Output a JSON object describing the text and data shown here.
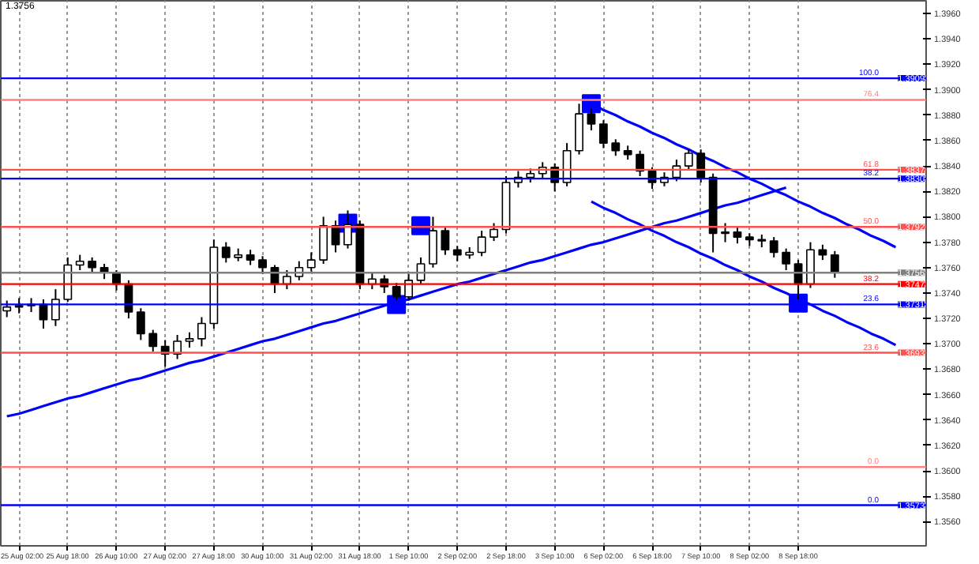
{
  "chart_data": {
    "type": "candlestick",
    "color": "#000000",
    "categories": [
      null,
      "25 Aug 02:00",
      null,
      null,
      null,
      "25 Aug 18:00",
      null,
      null,
      null,
      "26 Aug 10:00",
      null,
      null,
      null,
      "27 Aug 02:00",
      null,
      null,
      null,
      "27 Aug 18:00",
      null,
      null,
      null,
      "30 Aug 10:00",
      null,
      null,
      null,
      "31 Aug 02:00",
      null,
      null,
      null,
      "31 Aug 18:00",
      null,
      null,
      null,
      "1 Sep 10:00",
      null,
      null,
      null,
      "2 Sep 02:00",
      null,
      null,
      null,
      "2 Sep 18:00",
      null,
      null,
      null,
      "3 Sep 10:00",
      null,
      null,
      null,
      "6 Sep 02:00",
      null,
      null,
      null,
      "6 Sep 18:00",
      null,
      null,
      null,
      "7 Sep 10:00",
      null,
      null,
      null,
      "8 Sep 02:00",
      null,
      null,
      null,
      "8 Sep 18:00",
      null,
      null,
      null,
      null,
      null,
      null,
      null,
      null,
      null,
      null
    ],
    "ohlc": [
      [
        1.3726,
        1.3734,
        1.3721,
        1.3729
      ],
      [
        1.3729,
        1.3736,
        1.3724,
        1.373
      ],
      [
        1.373,
        1.3736,
        1.3725,
        1.3731
      ],
      [
        1.3731,
        1.3735,
        1.3712,
        1.3719
      ],
      [
        1.3719,
        1.3743,
        1.3714,
        1.3735
      ],
      [
        1.3735,
        1.3768,
        1.3733,
        1.3762
      ],
      [
        1.3762,
        1.377,
        1.3758,
        1.3765
      ],
      [
        1.3765,
        1.3768,
        1.3756,
        1.376
      ],
      [
        1.376,
        1.3763,
        1.3751,
        1.3756
      ],
      [
        1.3756,
        1.3758,
        1.3742,
        1.3747
      ],
      [
        1.3747,
        1.375,
        1.372,
        1.3725
      ],
      [
        1.3725,
        1.3728,
        1.3703,
        1.3708
      ],
      [
        1.3708,
        1.3711,
        1.3694,
        1.3698
      ],
      [
        1.3698,
        1.3703,
        1.3682,
        1.3692
      ],
      [
        1.3692,
        1.3707,
        1.3688,
        1.3702
      ],
      [
        1.3702,
        1.3709,
        1.3697,
        1.3704
      ],
      [
        1.3704,
        1.3721,
        1.3698,
        1.3716
      ],
      [
        1.3716,
        1.3782,
        1.3712,
        1.3776
      ],
      [
        1.3776,
        1.378,
        1.3764,
        1.3768
      ],
      [
        1.3768,
        1.3775,
        1.3765,
        1.377
      ],
      [
        1.377,
        1.3774,
        1.3762,
        1.3766
      ],
      [
        1.3766,
        1.3769,
        1.3755,
        1.376
      ],
      [
        1.376,
        1.3762,
        1.374,
        1.3747
      ],
      [
        1.3747,
        1.3758,
        1.3743,
        1.3753
      ],
      [
        1.3753,
        1.3765,
        1.375,
        1.376
      ],
      [
        1.376,
        1.3772,
        1.3757,
        1.3766
      ],
      [
        1.3766,
        1.38,
        1.3763,
        1.3793
      ],
      [
        1.3793,
        1.3797,
        1.3772,
        1.3778
      ],
      [
        1.3778,
        1.3805,
        1.3775,
        1.3794
      ],
      [
        1.3794,
        1.3797,
        1.3743,
        1.3747
      ],
      [
        1.3747,
        1.3756,
        1.3743,
        1.3751
      ],
      [
        1.3751,
        1.3754,
        1.374,
        1.3745
      ],
      [
        1.3745,
        1.3748,
        1.3734,
        1.3737
      ],
      [
        1.3737,
        1.3755,
        1.3734,
        1.375
      ],
      [
        1.375,
        1.3768,
        1.3747,
        1.3763
      ],
      [
        1.3763,
        1.38,
        1.376,
        1.3789
      ],
      [
        1.3789,
        1.3792,
        1.377,
        1.3774
      ],
      [
        1.3774,
        1.3777,
        1.3765,
        1.377
      ],
      [
        1.377,
        1.3776,
        1.3767,
        1.3772
      ],
      [
        1.3772,
        1.3789,
        1.3769,
        1.3784
      ],
      [
        1.3784,
        1.3795,
        1.3781,
        1.379
      ],
      [
        1.379,
        1.3832,
        1.3787,
        1.3827
      ],
      [
        1.3827,
        1.3836,
        1.3823,
        1.3831
      ],
      [
        1.3831,
        1.3838,
        1.3827,
        1.3834
      ],
      [
        1.3834,
        1.3843,
        1.383,
        1.3839
      ],
      [
        1.3839,
        1.3842,
        1.382,
        1.3827
      ],
      [
        1.3827,
        1.3858,
        1.3824,
        1.3852
      ],
      [
        1.3852,
        1.3889,
        1.3849,
        1.3881
      ],
      [
        1.3881,
        1.3885,
        1.3868,
        1.3873
      ],
      [
        1.3873,
        1.3876,
        1.3854,
        1.3858
      ],
      [
        1.3858,
        1.3861,
        1.3848,
        1.3852
      ],
      [
        1.3852,
        1.3856,
        1.3845,
        1.3849
      ],
      [
        1.3849,
        1.3852,
        1.3832,
        1.3836
      ],
      [
        1.3836,
        1.3839,
        1.3822,
        1.3827
      ],
      [
        1.3827,
        1.3835,
        1.3824,
        1.3831
      ],
      [
        1.3831,
        1.3845,
        1.3828,
        1.384
      ],
      [
        1.384,
        1.3853,
        1.3837,
        1.385
      ],
      [
        1.385,
        1.3853,
        1.3827,
        1.3831
      ],
      [
        1.3831,
        1.3834,
        1.3772,
        1.3787
      ],
      [
        1.3787,
        1.3795,
        1.378,
        1.3788
      ],
      [
        1.3788,
        1.3792,
        1.3779,
        1.3784
      ],
      [
        1.3784,
        1.3787,
        1.3777,
        1.3782
      ],
      [
        1.3782,
        1.3786,
        1.3776,
        1.3781
      ],
      [
        1.3781,
        1.3784,
        1.3768,
        1.3772
      ],
      [
        1.3772,
        1.3775,
        1.3758,
        1.3763
      ],
      [
        1.3763,
        1.3766,
        1.3735,
        1.3747
      ],
      [
        1.3747,
        1.378,
        1.3744,
        1.3774
      ],
      [
        1.3774,
        1.3778,
        1.3766,
        1.377
      ],
      [
        1.377,
        1.3773,
        1.3752,
        1.3756
      ],
      null,
      null,
      null,
      null,
      null,
      null,
      null
    ],
    "series": [
      {
        "type": "line",
        "color": "#0000ff",
        "values": [
          1.3643,
          1.3645,
          1.3648,
          1.3651,
          1.3654,
          1.3657,
          1.3659,
          1.3662,
          1.3665,
          1.3668,
          1.3671,
          1.3673,
          1.3676,
          1.3679,
          1.3682,
          1.3685,
          1.3687,
          1.369,
          1.3693,
          1.3696,
          1.3699,
          1.3702,
          1.3704,
          1.3707,
          1.371,
          1.3713,
          1.3716,
          1.3718,
          1.3721,
          1.3724,
          1.3727,
          1.373,
          1.3733,
          1.3735,
          1.3738,
          1.3741,
          1.3744,
          1.3747,
          1.3749,
          1.3752,
          1.3755,
          1.3758,
          1.3761,
          1.3764,
          1.3766,
          1.3769,
          1.3772,
          1.3775,
          1.3778,
          1.378,
          1.3783,
          1.3786,
          1.3789,
          1.3792,
          1.3795,
          1.3797,
          1.38,
          1.3803,
          1.3806,
          1.3809,
          1.3811,
          1.3814,
          1.3817,
          1.382,
          1.3823,
          null,
          null,
          null,
          null,
          null,
          null,
          null,
          null,
          null,
          null,
          null
        ]
      },
      {
        "type": "line",
        "color": "#0000ff",
        "values": [
          null,
          null,
          null,
          null,
          null,
          null,
          null,
          null,
          null,
          null,
          null,
          null,
          null,
          null,
          null,
          null,
          null,
          null,
          null,
          null,
          null,
          null,
          null,
          null,
          null,
          null,
          null,
          null,
          null,
          null,
          null,
          null,
          null,
          null,
          null,
          null,
          null,
          null,
          null,
          null,
          null,
          null,
          null,
          null,
          null,
          null,
          null,
          null,
          1.3889,
          1.3884,
          1.388,
          1.3875,
          1.3871,
          1.3866,
          1.3862,
          1.3857,
          1.3853,
          1.3848,
          1.3844,
          1.3839,
          1.3835,
          1.383,
          1.3826,
          1.3821,
          1.3817,
          1.3812,
          1.3808,
          1.3803,
          1.3799,
          1.3794,
          1.379,
          1.3785,
          1.3781,
          1.3776,
          null,
          null
        ]
      },
      {
        "type": "line",
        "color": "#0000ff",
        "values": [
          null,
          null,
          null,
          null,
          null,
          null,
          null,
          null,
          null,
          null,
          null,
          null,
          null,
          null,
          null,
          null,
          null,
          null,
          null,
          null,
          null,
          null,
          null,
          null,
          null,
          null,
          null,
          null,
          null,
          null,
          null,
          null,
          null,
          null,
          null,
          null,
          null,
          null,
          null,
          null,
          null,
          null,
          null,
          null,
          null,
          null,
          null,
          null,
          1.3812,
          1.3807,
          1.3803,
          1.3798,
          1.3794,
          1.3789,
          1.3785,
          1.378,
          1.3776,
          1.3771,
          1.3767,
          1.3762,
          1.3758,
          1.3753,
          1.3749,
          1.3744,
          1.374,
          1.3735,
          1.3731,
          1.3726,
          1.3722,
          1.3717,
          1.3713,
          1.3708,
          1.3704,
          1.3699,
          null,
          null
        ]
      },
      {
        "type": "scatter",
        "marker": "square",
        "color": "#0000ff",
        "values": [
          null,
          null,
          null,
          null,
          null,
          null,
          null,
          null,
          null,
          null,
          null,
          null,
          null,
          null,
          null,
          null,
          null,
          null,
          null,
          null,
          null,
          null,
          null,
          null,
          null,
          null,
          null,
          null,
          1.3795,
          null,
          null,
          null,
          1.3731,
          null,
          1.3793,
          null,
          null,
          null,
          null,
          null,
          null,
          null,
          null,
          null,
          null,
          null,
          null,
          null,
          1.3889,
          null,
          null,
          null,
          null,
          null,
          null,
          null,
          null,
          null,
          null,
          null,
          null,
          null,
          null,
          null,
          null,
          1.3732,
          null,
          null,
          null,
          null,
          null,
          null,
          null,
          null,
          null,
          null
        ]
      }
    ],
    "ylim": [
      1.3541,
      1.397
    ],
    "yticks": [
      {
        "value": 1.356,
        "label": "1.3560"
      },
      {
        "value": 1.358,
        "label": "1.3580"
      },
      {
        "value": 1.36,
        "label": "1.3600"
      },
      {
        "value": 1.362,
        "label": "1.3620"
      },
      {
        "value": 1.364,
        "label": "1.3640"
      },
      {
        "value": 1.366,
        "label": "1.3660"
      },
      {
        "value": 1.368,
        "label": "1.3680"
      },
      {
        "value": 1.37,
        "label": "1.3700"
      },
      {
        "value": 1.372,
        "label": "1.3720"
      },
      {
        "value": 1.374,
        "label": "1.3740"
      },
      {
        "value": 1.376,
        "label": "1.3760"
      },
      {
        "value": 1.378,
        "label": "1.3780"
      },
      {
        "value": 1.38,
        "label": "1.3800"
      },
      {
        "value": 1.382,
        "label": "1.3820"
      },
      {
        "value": 1.384,
        "label": "1.3840"
      },
      {
        "value": 1.386,
        "label": "1.3860"
      },
      {
        "value": 1.388,
        "label": "1.3880"
      },
      {
        "value": 1.39,
        "label": "1.3900"
      },
      {
        "value": 1.392,
        "label": "1.3920"
      },
      {
        "value": 1.394,
        "label": "1.3940"
      },
      {
        "value": 1.396,
        "label": "1.3960"
      }
    ],
    "ref_lines": [
      {
        "axis": "y",
        "value": 1.3909,
        "label": "1.3909",
        "color": "#0000ff"
      },
      {
        "axis": "y",
        "value": 1.3892,
        "label": null,
        "color": "#ff8080"
      },
      {
        "axis": "y",
        "value": 1.3837,
        "label": "1.3837",
        "color": "#ff5050"
      },
      {
        "axis": "y",
        "value": 1.383,
        "label": "1.3830",
        "color": "#0000ff"
      },
      {
        "axis": "y",
        "value": 1.3792,
        "label": "1.3792",
        "color": "#ff5050"
      },
      {
        "axis": "y",
        "value": 1.3747,
        "label": "1.3747",
        "color": "#ff0000"
      },
      {
        "axis": "y",
        "value": 1.3731,
        "label": "1.3731",
        "color": "#0000ff"
      },
      {
        "axis": "y",
        "value": 1.3693,
        "label": "1.3693",
        "color": "#ff5050"
      },
      {
        "axis": "y",
        "value": 1.3603,
        "label": null,
        "color": "#ff8080"
      },
      {
        "axis": "y",
        "value": 1.3573,
        "label": "1.3573",
        "color": "#0000ff"
      },
      {
        "axis": "y",
        "value": 1.3756,
        "label": "1.3756",
        "color": "#808080"
      }
    ],
    "annotations": [
      "1.3756",
      {
        "text": "100.0",
        "y": 1.3909
      },
      {
        "text": "76.4",
        "y": 1.3892
      },
      {
        "text": "61.8",
        "y": 1.3837
      },
      {
        "text": "38.2",
        "y": 1.383
      },
      {
        "text": "50.0",
        "y": 1.3792
      },
      {
        "text": "38.2",
        "y": 1.3747
      },
      {
        "text": "23.6",
        "y": 1.3731
      },
      {
        "text": "23.6",
        "y": 1.3693
      },
      {
        "text": "0.0",
        "y": 1.3603
      },
      {
        "text": "0.0",
        "y": 1.3573
      }
    ],
    "grid": "x"
  }
}
